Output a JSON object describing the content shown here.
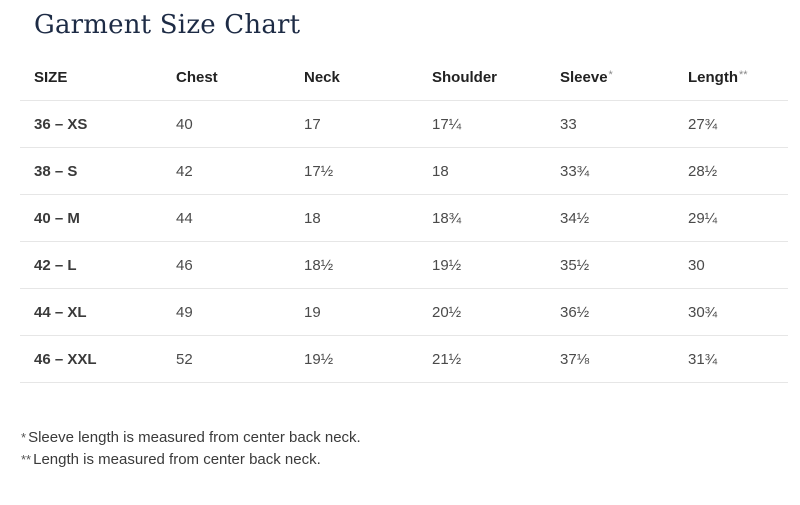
{
  "page": {
    "title": "Garment Size Chart"
  },
  "table": {
    "headers": [
      {
        "label": "SIZE",
        "mark": ""
      },
      {
        "label": "Chest",
        "mark": ""
      },
      {
        "label": "Neck",
        "mark": ""
      },
      {
        "label": "Shoulder",
        "mark": ""
      },
      {
        "label": "Sleeve",
        "mark": "*"
      },
      {
        "label": "Length",
        "mark": "**"
      }
    ],
    "rows": [
      [
        "36 – XS",
        "40",
        "17",
        "17¼",
        "33",
        "27¾"
      ],
      [
        "38 – S",
        "42",
        "17½",
        "18",
        "33¾",
        "28½"
      ],
      [
        "40 – M",
        "44",
        "18",
        "18¾",
        "34½",
        "29¼"
      ],
      [
        "42 – L",
        "46",
        "18½",
        "19½",
        "35½",
        "30"
      ],
      [
        "44 – XL",
        "49",
        "19",
        "20½",
        "36½",
        "30¾"
      ],
      [
        "46 – XXL",
        "52",
        "19½",
        "21½",
        "37⅛",
        "31¾"
      ]
    ]
  },
  "notes": [
    {
      "mark": "*",
      "text": "Sleeve length is measured from center back neck."
    },
    {
      "mark": "**",
      "text": "Length is measured from center back neck."
    }
  ]
}
